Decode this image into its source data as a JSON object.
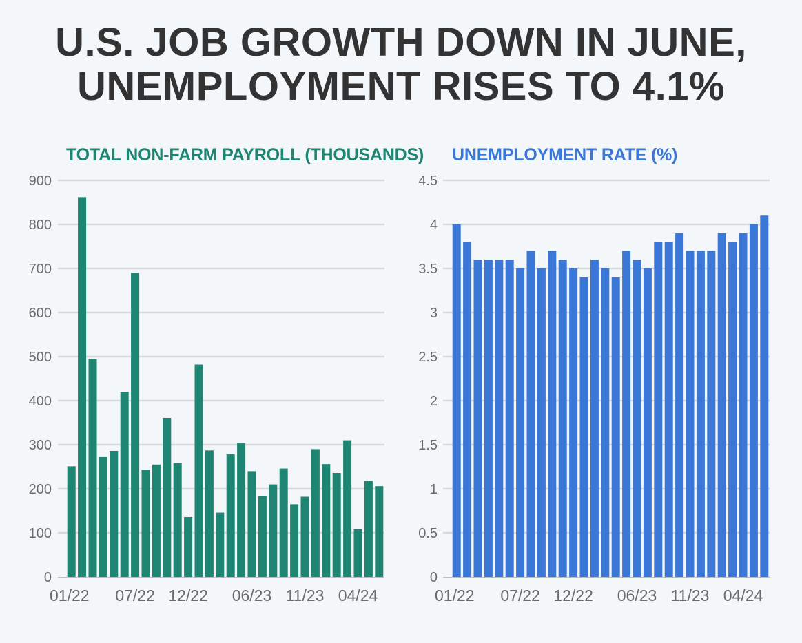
{
  "headline": {
    "line1": "U.S. JOB GROWTH DOWN IN JUNE,",
    "line2": "UNEMPLOYMENT RISES TO 4.1%"
  },
  "colors": {
    "payroll": "#1e8572",
    "rate": "#3a77d6",
    "title_text": "#333333",
    "grid": "#d6dadd",
    "tick_text": "#6b6b6b"
  },
  "chart_data": [
    {
      "type": "bar",
      "title": "TOTAL NON-FARM PAYROLL (THOUSANDS)",
      "xlabel": "",
      "ylabel": "",
      "ylim": [
        0,
        900
      ],
      "yticks": [
        0,
        100,
        200,
        300,
        400,
        500,
        600,
        700,
        800,
        900
      ],
      "ytick_labels": [
        "0",
        "100",
        "200",
        "300",
        "400",
        "500",
        "600",
        "700",
        "800",
        "900"
      ],
      "categories": [
        "01/22",
        "02/22",
        "03/22",
        "04/22",
        "05/22",
        "06/22",
        "07/22",
        "08/22",
        "09/22",
        "10/22",
        "11/22",
        "12/22",
        "01/23",
        "02/23",
        "03/23",
        "04/23",
        "05/23",
        "06/23",
        "07/23",
        "08/23",
        "09/23",
        "10/23",
        "11/23",
        "12/23",
        "01/24",
        "02/24",
        "03/24",
        "04/24",
        "05/24",
        "06/24"
      ],
      "values": [
        251,
        862,
        494,
        272,
        286,
        420,
        690,
        243,
        255,
        361,
        258,
        136,
        482,
        287,
        146,
        278,
        303,
        240,
        184,
        210,
        246,
        165,
        182,
        290,
        256,
        236,
        310,
        108,
        218,
        206
      ],
      "xtick_labels": [
        "01/22",
        "07/22",
        "12/22",
        "06/23",
        "11/23",
        "04/24"
      ],
      "xtick_indices": [
        0,
        6,
        11,
        17,
        22,
        27
      ],
      "grid": true
    },
    {
      "type": "bar",
      "title": "UNEMPLOYMENT RATE (%)",
      "xlabel": "",
      "ylabel": "",
      "ylim": [
        0,
        4.5
      ],
      "yticks": [
        0,
        0.5,
        1,
        1.5,
        2,
        2.5,
        3,
        3.5,
        4,
        4.5
      ],
      "ytick_labels": [
        "0",
        "0.5",
        "1",
        "1.5",
        "2",
        "2.5",
        "3",
        "3.5",
        "4",
        "4.5"
      ],
      "categories": [
        "01/22",
        "02/22",
        "03/22",
        "04/22",
        "05/22",
        "06/22",
        "07/22",
        "08/22",
        "09/22",
        "10/22",
        "11/22",
        "12/22",
        "01/23",
        "02/23",
        "03/23",
        "04/23",
        "05/23",
        "06/23",
        "07/23",
        "08/23",
        "09/23",
        "10/23",
        "11/23",
        "12/23",
        "01/24",
        "02/24",
        "03/24",
        "04/24",
        "05/24",
        "06/24"
      ],
      "values": [
        4.0,
        3.8,
        3.6,
        3.6,
        3.6,
        3.6,
        3.5,
        3.7,
        3.5,
        3.7,
        3.6,
        3.5,
        3.4,
        3.6,
        3.5,
        3.4,
        3.7,
        3.6,
        3.5,
        3.8,
        3.8,
        3.9,
        3.7,
        3.7,
        3.7,
        3.9,
        3.8,
        3.9,
        4.0,
        4.1
      ],
      "xtick_labels": [
        "01/22",
        "07/22",
        "12/22",
        "06/23",
        "11/23",
        "04/24"
      ],
      "xtick_indices": [
        0,
        6,
        11,
        17,
        22,
        27
      ],
      "grid": true
    }
  ]
}
